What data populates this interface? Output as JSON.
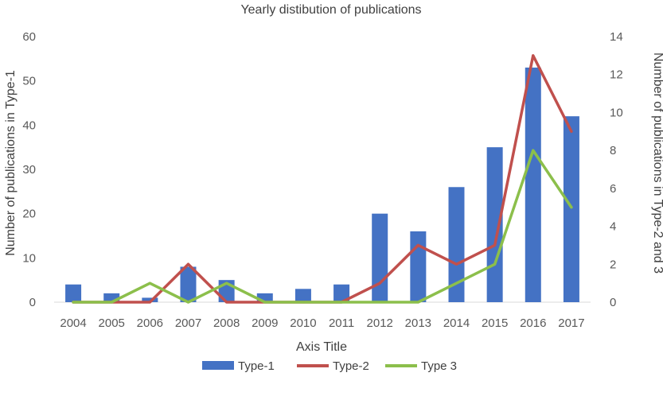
{
  "chart_data": {
    "type": "bar",
    "title": "Yearly distibution of publications",
    "xlabel": "Axis Title",
    "ylabel": "Number of publications in Type-1",
    "y2label": "Number of publications in Type-2 and 3",
    "categories": [
      "2004",
      "2005",
      "2006",
      "2007",
      "2008",
      "2009",
      "2010",
      "2011",
      "2012",
      "2013",
      "2014",
      "2015",
      "2016",
      "2017"
    ],
    "ylim": [
      0,
      60
    ],
    "y_ticks": [
      0,
      10,
      20,
      30,
      40,
      50,
      60
    ],
    "y2lim": [
      0,
      14
    ],
    "y2_ticks": [
      0,
      2,
      4,
      6,
      8,
      10,
      12,
      14
    ],
    "grid": false,
    "legend_position": "bottom",
    "series": [
      {
        "name": "Type-1",
        "kind": "bar",
        "axis": "left",
        "color": "#4472c4",
        "values": [
          4,
          2,
          1,
          8,
          5,
          2,
          3,
          4,
          20,
          16,
          26,
          35,
          53,
          42
        ]
      },
      {
        "name": "Type-2",
        "kind": "line",
        "axis": "right",
        "color": "#c0504d",
        "values": [
          0,
          0,
          0,
          2,
          0,
          0,
          0,
          0,
          1,
          3,
          2,
          3,
          13,
          9
        ]
      },
      {
        "name": "Type 3",
        "kind": "line",
        "axis": "right",
        "color": "#8cbf4b",
        "values": [
          0,
          0,
          1,
          0,
          1,
          0,
          0,
          0,
          0,
          0,
          1,
          2,
          8,
          5
        ]
      }
    ]
  }
}
